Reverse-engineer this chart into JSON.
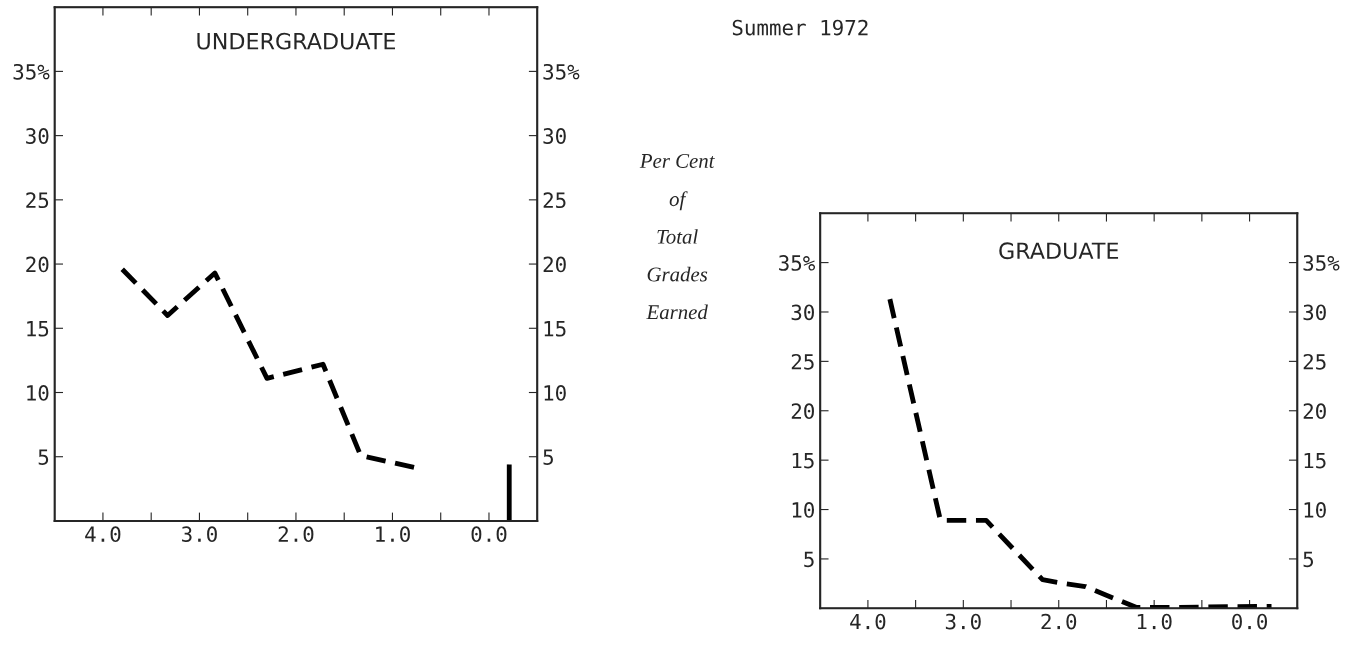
{
  "chart_data": [
    {
      "type": "line",
      "title": "UNDERGRADUATE",
      "y2label": "Per Cent\nof\nTotal\nGrades\nEarned",
      "annotations": [
        "Summer 1972"
      ],
      "series": [
        {
          "color": "#000000",
          "line_style": "dashed",
          "x": [
            3.8,
            3.33,
            2.84,
            2.3,
            1.72,
            1.33,
            0.74
          ],
          "values": [
            19.6,
            16.0,
            19.3,
            11.1,
            12.2,
            5.1,
            4.1
          ]
        },
        {
          "type": "bar",
          "color": "#000000",
          "x": [
            -0.21
          ],
          "values": [
            4.4
          ]
        }
      ],
      "xlim": [
        4.5,
        -0.5
      ],
      "xticks": [
        {
          "value": 4,
          "label": "4.0"
        },
        {
          "value": 3.5,
          "label": null
        },
        {
          "value": 3,
          "label": "3.0"
        },
        {
          "value": 2.5,
          "label": null
        },
        {
          "value": 2,
          "label": "2.0"
        },
        {
          "value": 1.5,
          "label": null
        },
        {
          "value": 1,
          "label": "1.0"
        },
        {
          "value": 0.5,
          "label": null
        },
        {
          "value": 0,
          "label": "0.0"
        }
      ],
      "ylim": [
        0,
        40
      ],
      "yticks": [
        5,
        10,
        15,
        20,
        25,
        30,
        {
          "value": 35,
          "label": "35%"
        }
      ],
      "y2lim": [
        0,
        40
      ],
      "y2ticks": [
        5,
        10,
        15,
        20,
        25,
        30,
        {
          "value": 35,
          "label": "35%"
        }
      ],
      "grid": false,
      "legend": false
    },
    {
      "type": "line",
      "title": "GRADUATE",
      "series": [
        {
          "color": "#000000",
          "line_style": "dashed",
          "x": [
            3.77,
            3.24,
            2.76,
            2.17,
            2.0,
            1.72,
            1.19,
            0.94,
            0.76,
            -0.23
          ],
          "values": [
            31.3,
            8.9,
            8.9,
            2.9,
            2.6,
            2.2,
            0.1,
            0.1,
            0.1,
            0.2
          ]
        }
      ],
      "xlim": [
        4.5,
        -0.5
      ],
      "xticks": [
        {
          "value": 4,
          "label": "4.0"
        },
        {
          "value": 3.5,
          "label": null
        },
        {
          "value": 3,
          "label": "3.0"
        },
        {
          "value": 2.5,
          "label": null
        },
        {
          "value": 2,
          "label": "2.0"
        },
        {
          "value": 1.5,
          "label": null
        },
        {
          "value": 1,
          "label": "1.0"
        },
        {
          "value": 0.5,
          "label": null
        },
        {
          "value": 0,
          "label": "0.0"
        }
      ],
      "ylim": [
        0,
        40
      ],
      "yticks": [
        5,
        10,
        15,
        20,
        25,
        30,
        {
          "value": 35,
          "label": "35%"
        }
      ],
      "y2lim": [
        0,
        40
      ],
      "y2ticks": [
        5,
        10,
        15,
        20,
        25,
        30,
        {
          "value": 35,
          "label": "35%"
        }
      ],
      "grid": false,
      "legend": false
    }
  ]
}
